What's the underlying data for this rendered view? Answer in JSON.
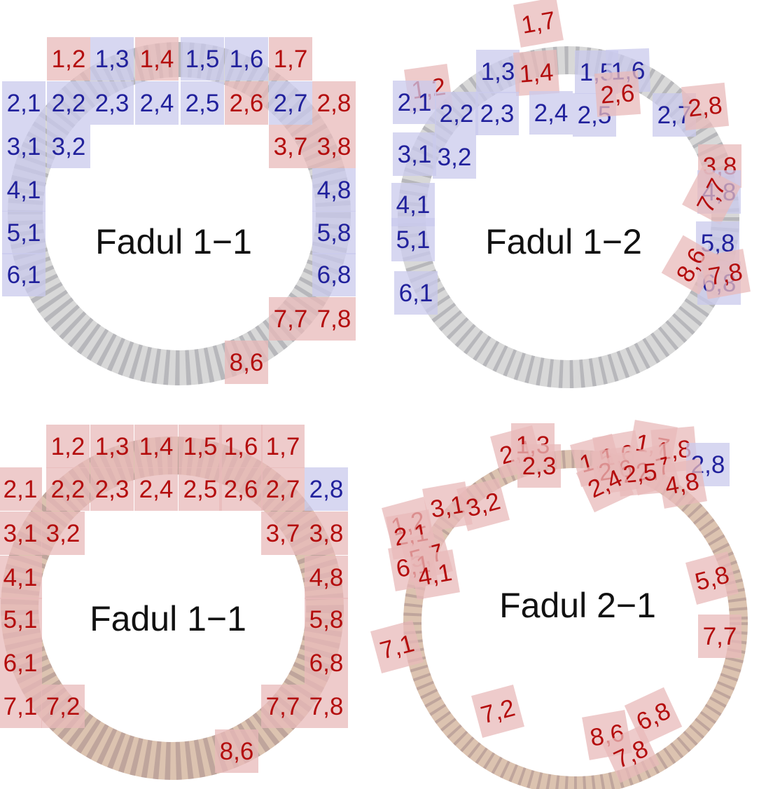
{
  "colors": {
    "red_fill": "#e8b9b9",
    "red_text": "#b40d0d",
    "blue_fill": "#c9c9ec",
    "blue_text": "#21219c",
    "gray_ring_light": "#d8d8d8",
    "gray_ring_dark": "#7a7a86",
    "tan_ring_light": "#dcc3b0",
    "tan_ring_dark": "#8a6c78"
  },
  "panels": [
    {
      "id": "p1",
      "title": "Fadul 1−1",
      "ring": "gray",
      "tiles": [
        {
          "label": "1,2",
          "c": "red"
        },
        {
          "label": "1,3",
          "c": "blue"
        },
        {
          "label": "1,4",
          "c": "red"
        },
        {
          "label": "1,5",
          "c": "blue"
        },
        {
          "label": "1,6",
          "c": "blue"
        },
        {
          "label": "1,7",
          "c": "red"
        },
        {
          "label": "2,1",
          "c": "blue"
        },
        {
          "label": "2,2",
          "c": "blue"
        },
        {
          "label": "2,3",
          "c": "blue"
        },
        {
          "label": "2,4",
          "c": "blue"
        },
        {
          "label": "2,5",
          "c": "blue"
        },
        {
          "label": "2,6",
          "c": "red"
        },
        {
          "label": "2,7",
          "c": "blue"
        },
        {
          "label": "2,8",
          "c": "red"
        },
        {
          "label": "3,1",
          "c": "blue"
        },
        {
          "label": "3,2",
          "c": "blue"
        },
        {
          "label": "3,7",
          "c": "red"
        },
        {
          "label": "3,8",
          "c": "red"
        },
        {
          "label": "4,1",
          "c": "blue"
        },
        {
          "label": "4,8",
          "c": "blue"
        },
        {
          "label": "5,1",
          "c": "blue"
        },
        {
          "label": "5,8",
          "c": "blue"
        },
        {
          "label": "6,1",
          "c": "blue"
        },
        {
          "label": "6,8",
          "c": "blue"
        },
        {
          "label": "7,7",
          "c": "red"
        },
        {
          "label": "7,8",
          "c": "red"
        },
        {
          "label": "8,6",
          "c": "red"
        }
      ]
    },
    {
      "id": "p2",
      "title": "Fadul 1−2",
      "ring": "gray",
      "tiles": [
        {
          "label": "1,7",
          "c": "red"
        },
        {
          "label": "1,2",
          "c": "red"
        },
        {
          "label": "1,3",
          "c": "blue"
        },
        {
          "label": "1,4",
          "c": "red"
        },
        {
          "label": "1,5",
          "c": "blue"
        },
        {
          "label": "1,6",
          "c": "blue"
        },
        {
          "label": "2,1",
          "c": "blue"
        },
        {
          "label": "2,2",
          "c": "blue"
        },
        {
          "label": "2,3",
          "c": "blue"
        },
        {
          "label": "2,4",
          "c": "blue"
        },
        {
          "label": "2,5",
          "c": "blue"
        },
        {
          "label": "2,6",
          "c": "red"
        },
        {
          "label": "2,7",
          "c": "blue"
        },
        {
          "label": "2,8",
          "c": "red"
        },
        {
          "label": "3,1",
          "c": "blue"
        },
        {
          "label": "3,2",
          "c": "blue"
        },
        {
          "label": "3,8",
          "c": "red"
        },
        {
          "label": "4,1",
          "c": "blue"
        },
        {
          "label": "4,8",
          "c": "blue"
        },
        {
          "label": "7,7",
          "c": "red"
        },
        {
          "label": "5,1",
          "c": "blue"
        },
        {
          "label": "5,8",
          "c": "blue"
        },
        {
          "label": "6,1",
          "c": "blue"
        },
        {
          "label": "6,8",
          "c": "blue"
        },
        {
          "label": "8,6",
          "c": "red"
        },
        {
          "label": "7,8",
          "c": "red"
        }
      ]
    },
    {
      "id": "p3",
      "title": "Fadul 1−1",
      "ring": "tan",
      "tiles": [
        {
          "label": "1,2",
          "c": "red"
        },
        {
          "label": "1,3",
          "c": "red"
        },
        {
          "label": "1,4",
          "c": "red"
        },
        {
          "label": "1,5",
          "c": "red"
        },
        {
          "label": "1,6",
          "c": "red"
        },
        {
          "label": "1,7",
          "c": "red"
        },
        {
          "label": "2,1",
          "c": "red"
        },
        {
          "label": "2,2",
          "c": "red"
        },
        {
          "label": "2,3",
          "c": "red"
        },
        {
          "label": "2,4",
          "c": "red"
        },
        {
          "label": "2,5",
          "c": "red"
        },
        {
          "label": "2,6",
          "c": "red"
        },
        {
          "label": "2,7",
          "c": "red"
        },
        {
          "label": "2,8",
          "c": "blue"
        },
        {
          "label": "3,1",
          "c": "red"
        },
        {
          "label": "3,2",
          "c": "red"
        },
        {
          "label": "3,7",
          "c": "red"
        },
        {
          "label": "3,8",
          "c": "red"
        },
        {
          "label": "4,1",
          "c": "red"
        },
        {
          "label": "4,8",
          "c": "red"
        },
        {
          "label": "5,1",
          "c": "red"
        },
        {
          "label": "5,8",
          "c": "red"
        },
        {
          "label": "6,1",
          "c": "red"
        },
        {
          "label": "6,8",
          "c": "red"
        },
        {
          "label": "7,1",
          "c": "red"
        },
        {
          "label": "7,2",
          "c": "red"
        },
        {
          "label": "7,7",
          "c": "red"
        },
        {
          "label": "7,8",
          "c": "red"
        },
        {
          "label": "8,6",
          "c": "red"
        }
      ]
    },
    {
      "id": "p4",
      "title": "Fadul 2−1",
      "ring": "tan",
      "tiles": [
        {
          "label": "2,1",
          "c": "red"
        },
        {
          "label": "1,3",
          "c": "red"
        },
        {
          "label": "2,3",
          "c": "red"
        },
        {
          "label": "1,5",
          "c": "red"
        },
        {
          "label": "1,6",
          "c": "red"
        },
        {
          "label": "1,7",
          "c": "red"
        },
        {
          "label": "2,6",
          "c": "red"
        },
        {
          "label": "1,8",
          "c": "red"
        },
        {
          "label": "2,7",
          "c": "red"
        },
        {
          "label": "2,5",
          "c": "red"
        },
        {
          "label": "2,4",
          "c": "red"
        },
        {
          "label": "2,8",
          "c": "blue"
        },
        {
          "label": "4,8",
          "c": "red"
        },
        {
          "label": "1,2",
          "c": "red"
        },
        {
          "label": "3,1",
          "c": "red"
        },
        {
          "label": "3,2",
          "c": "red"
        },
        {
          "label": "2,1",
          "c": "red"
        },
        {
          "label": "5,7",
          "c": "red"
        },
        {
          "label": "6,1",
          "c": "red"
        },
        {
          "label": "4,1",
          "c": "red"
        },
        {
          "label": "7,1",
          "c": "red"
        },
        {
          "label": "5,8",
          "c": "red"
        },
        {
          "label": "7,7",
          "c": "red"
        },
        {
          "label": "7,2",
          "c": "red"
        },
        {
          "label": "6,8",
          "c": "red"
        },
        {
          "label": "8,6",
          "c": "red"
        },
        {
          "label": "7,8",
          "c": "red"
        }
      ]
    }
  ]
}
